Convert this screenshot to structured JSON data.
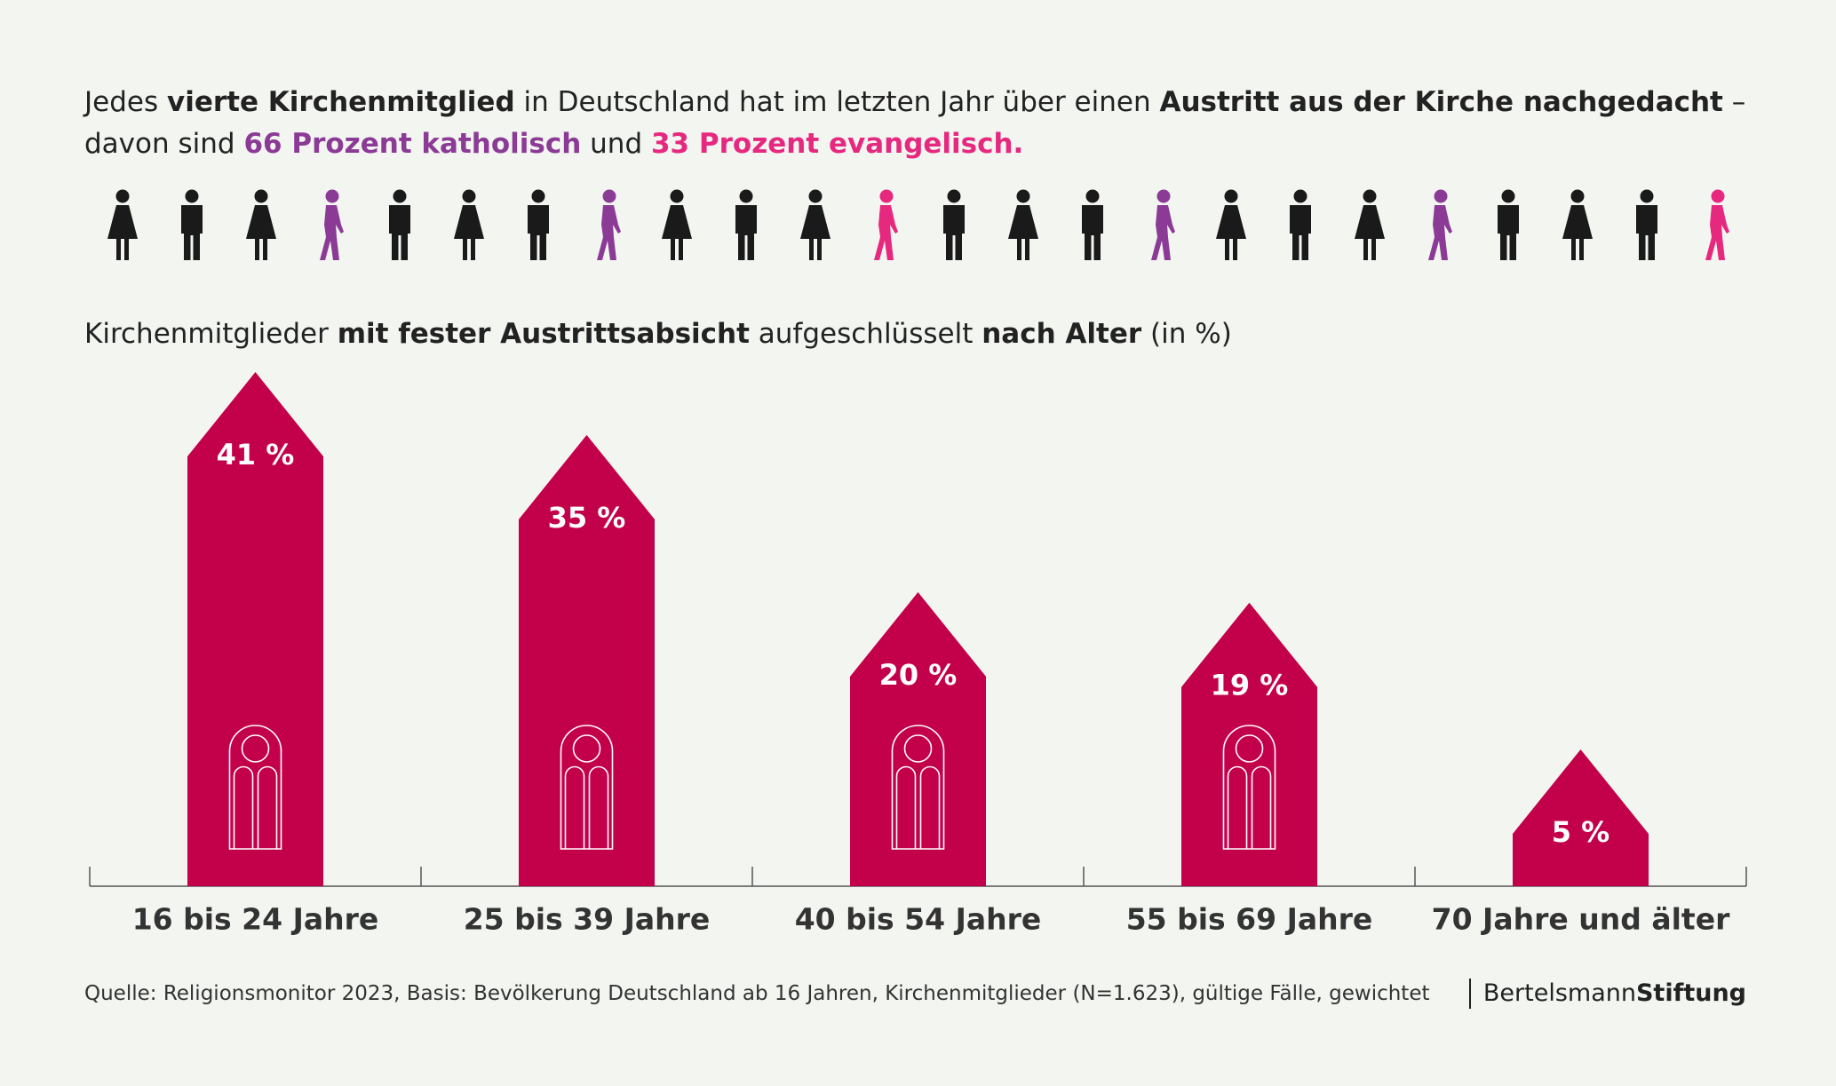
{
  "headline": [
    "Jedes ",
    "vierte Kirchenmitglied",
    " in Deutschland hat im letzten Jahr über einen ",
    "Austritt aus der Kirche nachgedacht",
    " –",
    "davon sind ",
    "66 Prozent katholisch",
    " und ",
    "33 Prozent evangelisch."
  ],
  "chart_data": {
    "type": "house-bar",
    "title": [
      "Kirchenmitglieder ",
      "mit fester Austrittsabsicht",
      " aufgeschlüsselt ",
      "nach Alter",
      " (in %)"
    ],
    "categories": [
      "16 bis 24 Jahre",
      "25 bis 39 Jahre",
      "40 bis 54 Jahre",
      "55 bis 69 Jahre",
      "70 Jahre und älter"
    ],
    "values": [
      41,
      35,
      20,
      19,
      5
    ],
    "value_labels": [
      "41 %",
      "35 %",
      "20 %",
      "19 %",
      "5 %"
    ],
    "color": "#c3004a"
  },
  "source": "Quelle: Religionsmonitor 2023, Basis: Bevölkerung Deutschland ab 16 Jahren, Kirchenmitglieder (N=1.623), gültige Fälle, gewichtet",
  "logo": [
    "Bertelsmann",
    "Stiftung"
  ]
}
